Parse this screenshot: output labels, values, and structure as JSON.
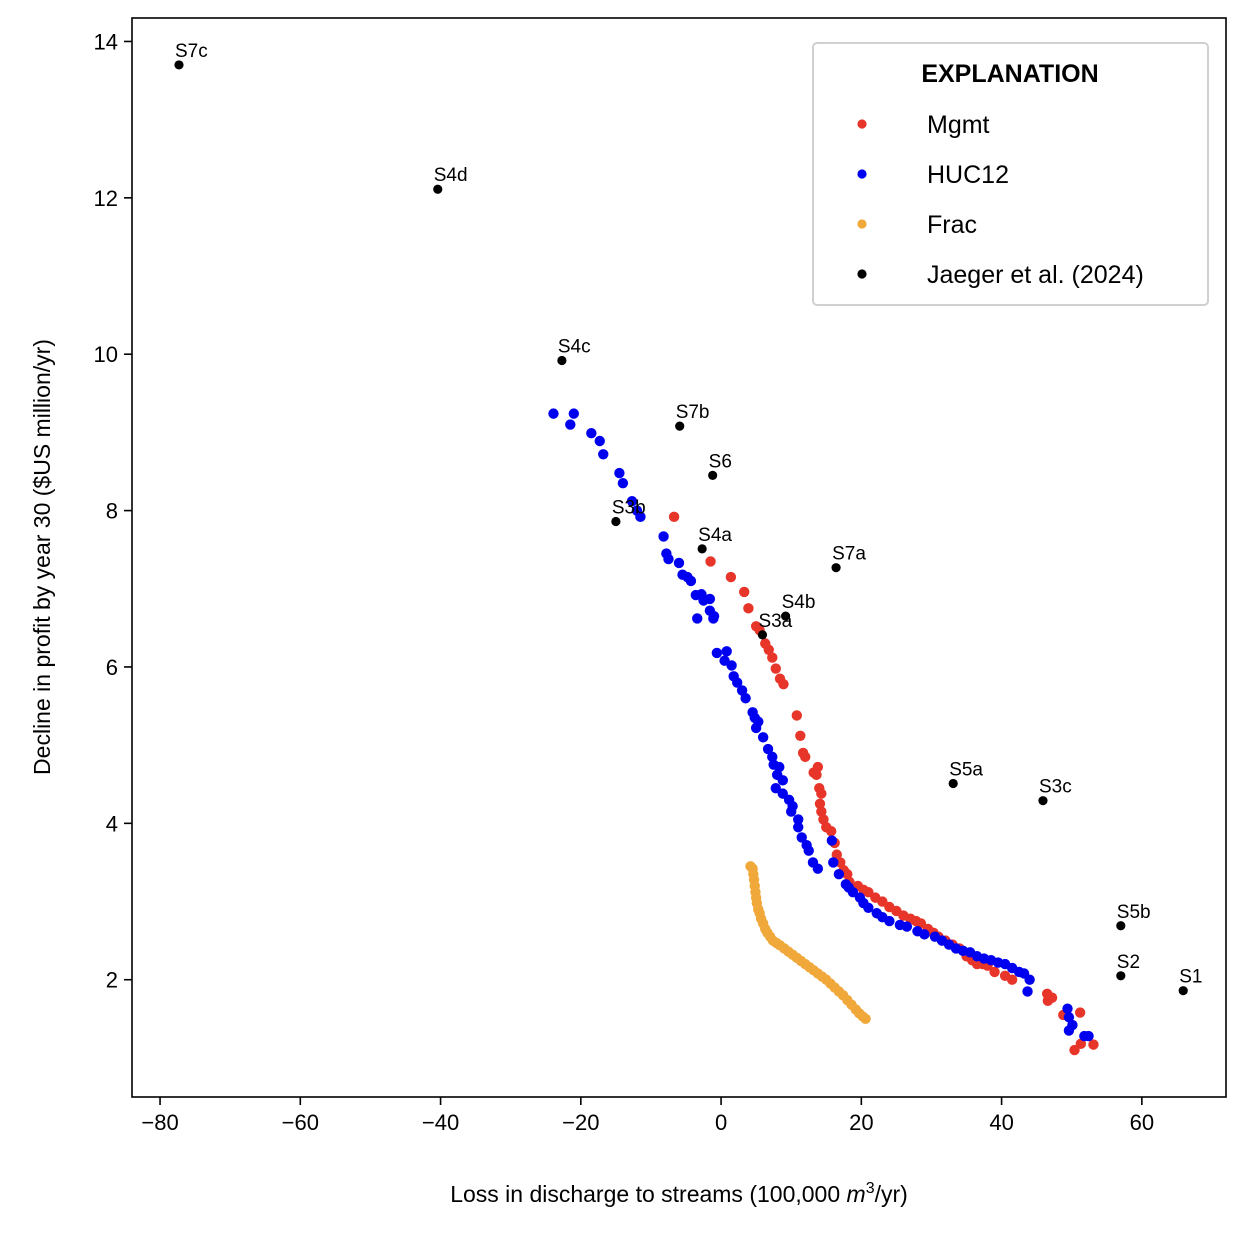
{
  "chart_data": {
    "type": "scatter",
    "title": "",
    "xlabel": "Loss in discharge to streams (100,000 m³/yr)",
    "xlabel_parts": {
      "pre": "Loss in discharge to streams (100,000 ",
      "italic": "m",
      "sup": "3",
      "post": "/yr)"
    },
    "ylabel": "Decline in profit by year 30 ($US million/yr)",
    "xlim": [
      -84,
      72
    ],
    "ylim": [
      0.5,
      14.3
    ],
    "xticks": [
      -80,
      -60,
      -40,
      -20,
      0,
      20,
      40,
      60
    ],
    "xtick_labels": [
      "−80",
      "−60",
      "−40",
      "−20",
      "0",
      "20",
      "40",
      "60"
    ],
    "yticks": [
      2,
      4,
      6,
      8,
      10,
      12,
      14
    ],
    "ytick_labels": [
      "2",
      "4",
      "6",
      "8",
      "10",
      "12",
      "14"
    ],
    "grid": false,
    "legend": {
      "title": "EXPLANATION",
      "placement": "top-right",
      "entries": [
        {
          "name": "Mgmt",
          "color": "#e8352a"
        },
        {
          "name": "HUC12",
          "color": "#0000f0"
        },
        {
          "name": "Frac",
          "color": "#f0a83a"
        },
        {
          "name": "Jaeger et al. (2024)",
          "color": "#000000"
        }
      ]
    },
    "series": [
      {
        "name": "Mgmt",
        "color": "#e8352a",
        "points": [
          [
            -6.7,
            7.92
          ],
          [
            -1.5,
            7.35
          ],
          [
            1.4,
            7.15
          ],
          [
            3.3,
            6.96
          ],
          [
            3.9,
            6.75
          ],
          [
            5.0,
            6.52
          ],
          [
            5.5,
            6.47
          ],
          [
            6.3,
            6.3
          ],
          [
            6.8,
            6.22
          ],
          [
            7.3,
            6.12
          ],
          [
            7.8,
            5.98
          ],
          [
            8.4,
            5.85
          ],
          [
            8.9,
            5.78
          ],
          [
            10.8,
            5.38
          ],
          [
            11.3,
            5.12
          ],
          [
            11.7,
            4.9
          ],
          [
            12.0,
            4.85
          ],
          [
            13.2,
            4.65
          ],
          [
            13.6,
            4.62
          ],
          [
            13.8,
            4.72
          ],
          [
            14.0,
            4.45
          ],
          [
            14.3,
            4.38
          ],
          [
            14.1,
            4.25
          ],
          [
            14.3,
            4.15
          ],
          [
            14.6,
            4.05
          ],
          [
            15.0,
            3.95
          ],
          [
            15.7,
            3.9
          ],
          [
            16.2,
            3.75
          ],
          [
            16.5,
            3.6
          ],
          [
            17.0,
            3.5
          ],
          [
            17.5,
            3.4
          ],
          [
            18.0,
            3.35
          ],
          [
            18.3,
            3.25
          ],
          [
            19.5,
            3.2
          ],
          [
            20.3,
            3.15
          ],
          [
            21.0,
            3.12
          ],
          [
            22.0,
            3.05
          ],
          [
            23.0,
            3.0
          ],
          [
            24.0,
            2.93
          ],
          [
            25.0,
            2.88
          ],
          [
            26.0,
            2.82
          ],
          [
            27.0,
            2.78
          ],
          [
            27.8,
            2.75
          ],
          [
            28.5,
            2.72
          ],
          [
            29.5,
            2.65
          ],
          [
            30.3,
            2.6
          ],
          [
            31.0,
            2.55
          ],
          [
            32.0,
            2.5
          ],
          [
            33.0,
            2.45
          ],
          [
            34.0,
            2.4
          ],
          [
            35.0,
            2.3
          ],
          [
            35.8,
            2.25
          ],
          [
            36.5,
            2.2
          ],
          [
            37.3,
            2.2
          ],
          [
            38.0,
            2.18
          ],
          [
            39.0,
            2.1
          ],
          [
            40.5,
            2.05
          ],
          [
            41.5,
            2.0
          ],
          [
            46.5,
            1.82
          ],
          [
            47.2,
            1.77
          ],
          [
            46.6,
            1.73
          ],
          [
            48.8,
            1.55
          ],
          [
            51.2,
            1.58
          ],
          [
            50.4,
            1.1
          ],
          [
            51.3,
            1.18
          ],
          [
            53.1,
            1.17
          ]
        ]
      },
      {
        "name": "HUC12",
        "color": "#0000f0",
        "points": [
          [
            -23.9,
            9.24
          ],
          [
            -21.0,
            9.24
          ],
          [
            -21.5,
            9.1
          ],
          [
            -18.5,
            8.99
          ],
          [
            -17.3,
            8.89
          ],
          [
            -16.8,
            8.72
          ],
          [
            -14.5,
            8.48
          ],
          [
            -14.0,
            8.35
          ],
          [
            -12.7,
            8.12
          ],
          [
            -12.0,
            8.0
          ],
          [
            -11.5,
            7.92
          ],
          [
            -8.2,
            7.67
          ],
          [
            -7.8,
            7.45
          ],
          [
            -7.5,
            7.38
          ],
          [
            -6.0,
            7.33
          ],
          [
            -5.5,
            7.18
          ],
          [
            -4.8,
            7.15
          ],
          [
            -4.3,
            7.1
          ],
          [
            -3.6,
            6.92
          ],
          [
            -2.8,
            6.93
          ],
          [
            -2.5,
            6.85
          ],
          [
            -1.6,
            6.87
          ],
          [
            -1.6,
            6.72
          ],
          [
            -1.0,
            6.65
          ],
          [
            -3.4,
            6.62
          ],
          [
            -1.1,
            6.62
          ],
          [
            -0.6,
            6.18
          ],
          [
            0.8,
            6.2
          ],
          [
            0.5,
            6.08
          ],
          [
            1.5,
            6.02
          ],
          [
            1.8,
            5.88
          ],
          [
            2.3,
            5.8
          ],
          [
            3.0,
            5.7
          ],
          [
            3.5,
            5.6
          ],
          [
            4.5,
            5.42
          ],
          [
            4.8,
            5.35
          ],
          [
            5.3,
            5.3
          ],
          [
            5.0,
            5.22
          ],
          [
            6.0,
            5.1
          ],
          [
            6.7,
            4.95
          ],
          [
            7.3,
            4.85
          ],
          [
            7.5,
            4.75
          ],
          [
            8.3,
            4.72
          ],
          [
            8.0,
            4.62
          ],
          [
            8.8,
            4.55
          ],
          [
            7.8,
            4.45
          ],
          [
            8.8,
            4.38
          ],
          [
            9.7,
            4.3
          ],
          [
            10.2,
            4.22
          ],
          [
            10.0,
            4.15
          ],
          [
            11.0,
            4.05
          ],
          [
            11.0,
            3.95
          ],
          [
            11.5,
            3.82
          ],
          [
            12.2,
            3.72
          ],
          [
            12.5,
            3.65
          ],
          [
            13.1,
            3.5
          ],
          [
            13.8,
            3.42
          ],
          [
            15.8,
            3.78
          ],
          [
            16.0,
            3.5
          ],
          [
            16.8,
            3.35
          ],
          [
            17.8,
            3.22
          ],
          [
            18.2,
            3.18
          ],
          [
            18.8,
            3.12
          ],
          [
            19.8,
            3.05
          ],
          [
            20.3,
            2.98
          ],
          [
            21.0,
            2.92
          ],
          [
            22.2,
            2.85
          ],
          [
            23.0,
            2.8
          ],
          [
            24.0,
            2.75
          ],
          [
            25.5,
            2.7
          ],
          [
            26.5,
            2.68
          ],
          [
            28.0,
            2.62
          ],
          [
            29.0,
            2.58
          ],
          [
            30.5,
            2.55
          ],
          [
            31.5,
            2.5
          ],
          [
            32.5,
            2.45
          ],
          [
            33.5,
            2.4
          ],
          [
            34.5,
            2.37
          ],
          [
            35.5,
            2.35
          ],
          [
            36.5,
            2.3
          ],
          [
            37.5,
            2.27
          ],
          [
            38.5,
            2.25
          ],
          [
            39.5,
            2.22
          ],
          [
            40.5,
            2.2
          ],
          [
            41.5,
            2.15
          ],
          [
            42.5,
            2.1
          ],
          [
            43.2,
            2.08
          ],
          [
            44.0,
            2.0
          ],
          [
            43.7,
            1.85
          ],
          [
            49.4,
            1.63
          ],
          [
            49.6,
            1.52
          ],
          [
            49.6,
            1.35
          ],
          [
            50.1,
            1.42
          ],
          [
            51.8,
            1.28
          ],
          [
            52.4,
            1.28
          ]
        ]
      },
      {
        "name": "Frac",
        "color": "#f0a83a",
        "points": [
          [
            4.2,
            3.45
          ],
          [
            4.5,
            3.42
          ],
          [
            4.6,
            3.35
          ],
          [
            4.7,
            3.28
          ],
          [
            4.8,
            3.2
          ],
          [
            4.9,
            3.12
          ],
          [
            5.0,
            3.05
          ],
          [
            5.1,
            2.98
          ],
          [
            5.3,
            2.9
          ],
          [
            5.5,
            2.85
          ],
          [
            5.7,
            2.78
          ],
          [
            6.0,
            2.72
          ],
          [
            6.3,
            2.65
          ],
          [
            6.6,
            2.6
          ],
          [
            7.0,
            2.55
          ],
          [
            7.4,
            2.5
          ],
          [
            7.9,
            2.47
          ],
          [
            8.4,
            2.44
          ],
          [
            9.0,
            2.4
          ],
          [
            9.6,
            2.36
          ],
          [
            10.2,
            2.32
          ],
          [
            10.8,
            2.28
          ],
          [
            11.4,
            2.24
          ],
          [
            12.0,
            2.2
          ],
          [
            12.6,
            2.16
          ],
          [
            13.2,
            2.12
          ],
          [
            13.8,
            2.08
          ],
          [
            14.4,
            2.04
          ],
          [
            15.0,
            2.0
          ],
          [
            15.6,
            1.95
          ],
          [
            16.2,
            1.9
          ],
          [
            16.8,
            1.85
          ],
          [
            17.4,
            1.8
          ],
          [
            18.0,
            1.74
          ],
          [
            18.6,
            1.68
          ],
          [
            19.2,
            1.62
          ],
          [
            19.7,
            1.57
          ],
          [
            20.2,
            1.53
          ],
          [
            20.6,
            1.5
          ]
        ]
      },
      {
        "name": "Jaeger et al. (2024)",
        "color": "#000000",
        "points": [
          [
            -77.3,
            13.7,
            "S7c"
          ],
          [
            -40.4,
            12.11,
            "S4d"
          ],
          [
            -22.7,
            9.92,
            "S4c"
          ],
          [
            -5.9,
            9.08,
            "S7b"
          ],
          [
            -1.2,
            8.45,
            "S6"
          ],
          [
            -15.0,
            7.86,
            "S3b"
          ],
          [
            -2.7,
            7.51,
            "S4a"
          ],
          [
            16.4,
            7.27,
            "S7a"
          ],
          [
            9.2,
            6.65,
            "S4b"
          ],
          [
            5.9,
            6.41,
            "S3a"
          ],
          [
            33.1,
            4.51,
            "S5a"
          ],
          [
            45.9,
            4.29,
            "S3c"
          ],
          [
            57.0,
            2.69,
            "S5b"
          ],
          [
            57.0,
            2.05,
            "S2"
          ],
          [
            65.9,
            1.86,
            "S1"
          ]
        ]
      }
    ]
  }
}
